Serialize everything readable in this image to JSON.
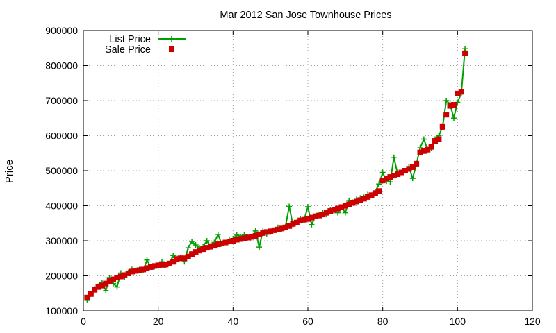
{
  "chart_data": {
    "type": "line",
    "title": "Mar 2012 San Jose Townhouse Prices",
    "xlabel": "",
    "ylabel": "Price",
    "xlim": [
      0,
      120
    ],
    "ylim": [
      100000,
      900000
    ],
    "xticks": [
      0,
      20,
      40,
      60,
      80,
      100,
      120
    ],
    "yticks": [
      100000,
      200000,
      300000,
      400000,
      500000,
      600000,
      700000,
      800000,
      900000
    ],
    "grid": true,
    "legend_position": "top-left",
    "series": [
      {
        "name": "List Price",
        "style": "line-with-plus",
        "color": "#00a000",
        "x": [
          1,
          2,
          3,
          4,
          5,
          6,
          7,
          8,
          9,
          10,
          11,
          12,
          13,
          14,
          15,
          16,
          17,
          18,
          19,
          20,
          21,
          22,
          23,
          24,
          25,
          26,
          27,
          28,
          29,
          30,
          31,
          32,
          33,
          34,
          35,
          36,
          37,
          38,
          39,
          40,
          41,
          42,
          43,
          44,
          45,
          46,
          47,
          48,
          49,
          50,
          51,
          52,
          53,
          54,
          55,
          56,
          57,
          58,
          59,
          60,
          61,
          62,
          63,
          64,
          65,
          66,
          67,
          68,
          69,
          70,
          71,
          72,
          73,
          74,
          75,
          76,
          77,
          78,
          79,
          80,
          81,
          82,
          83,
          84,
          85,
          86,
          87,
          88,
          89,
          90,
          91,
          92,
          93,
          94,
          95,
          96,
          97,
          98,
          99,
          100,
          101,
          102
        ],
        "values": [
          130000,
          148000,
          163000,
          170000,
          180000,
          158000,
          195000,
          178000,
          168000,
          208000,
          196000,
          210000,
          218000,
          214000,
          218000,
          215000,
          245000,
          225000,
          226000,
          228000,
          240000,
          230000,
          235000,
          258000,
          250000,
          252000,
          240000,
          280000,
          298000,
          288000,
          280000,
          284000,
          300000,
          285000,
          295000,
          318000,
          290000,
          295000,
          303000,
          306000,
          316000,
          312000,
          318000,
          310000,
          308000,
          328000,
          282000,
          330000,
          320000,
          325000,
          330000,
          338000,
          332000,
          340000,
          398000,
          345000,
          352000,
          362000,
          360000,
          397000,
          346000,
          370000,
          375000,
          380000,
          375000,
          388000,
          385000,
          380000,
          396000,
          380000,
          415000,
          410000,
          418000,
          422000,
          424000,
          432000,
          430000,
          440000,
          462000,
          495000,
          470000,
          468000,
          538000,
          490000,
          495000,
          500000,
          512000,
          478000,
          518000,
          565000,
          590000,
          560000,
          565000,
          590000,
          600000,
          625000,
          700000,
          690000,
          650000,
          695000,
          720000,
          848000
        ]
      },
      {
        "name": "Sale Price",
        "style": "markers-square",
        "color": "#cc0000",
        "x": [
          1,
          2,
          3,
          4,
          5,
          6,
          7,
          8,
          9,
          10,
          11,
          12,
          13,
          14,
          15,
          16,
          17,
          18,
          19,
          20,
          21,
          22,
          23,
          24,
          25,
          26,
          27,
          28,
          29,
          30,
          31,
          32,
          33,
          34,
          35,
          36,
          37,
          38,
          39,
          40,
          41,
          42,
          43,
          44,
          45,
          46,
          47,
          48,
          49,
          50,
          51,
          52,
          53,
          54,
          55,
          56,
          57,
          58,
          59,
          60,
          61,
          62,
          63,
          64,
          65,
          66,
          67,
          68,
          69,
          70,
          71,
          72,
          73,
          74,
          75,
          76,
          77,
          78,
          79,
          80,
          81,
          82,
          83,
          84,
          85,
          86,
          87,
          88,
          89,
          90,
          91,
          92,
          93,
          94,
          95,
          96,
          97,
          98,
          99,
          100,
          101,
          102
        ],
        "values": [
          138000,
          148000,
          160000,
          168000,
          172000,
          178000,
          185000,
          190000,
          195000,
          198000,
          202000,
          207000,
          212000,
          214000,
          216000,
          218000,
          222000,
          225000,
          228000,
          230000,
          231000,
          232000,
          235000,
          240000,
          248000,
          250000,
          250000,
          255000,
          262000,
          268000,
          272000,
          276000,
          280000,
          283000,
          286000,
          290000,
          292000,
          295000,
          298000,
          300000,
          303000,
          305000,
          307000,
          309000,
          311000,
          314000,
          318000,
          322000,
          325000,
          327000,
          330000,
          332000,
          335000,
          338000,
          342000,
          348000,
          352000,
          358000,
          360000,
          362000,
          366000,
          370000,
          372000,
          375000,
          380000,
          385000,
          388000,
          392000,
          396000,
          400000,
          404000,
          408000,
          412000,
          416000,
          420000,
          425000,
          430000,
          436000,
          442000,
          472000,
          478000,
          482000,
          486000,
          490000,
          495000,
          500000,
          505000,
          510000,
          520000,
          552000,
          556000,
          560000,
          568000,
          585000,
          590000,
          625000,
          660000,
          685000,
          688000,
          720000,
          725000,
          835000
        ]
      }
    ]
  }
}
